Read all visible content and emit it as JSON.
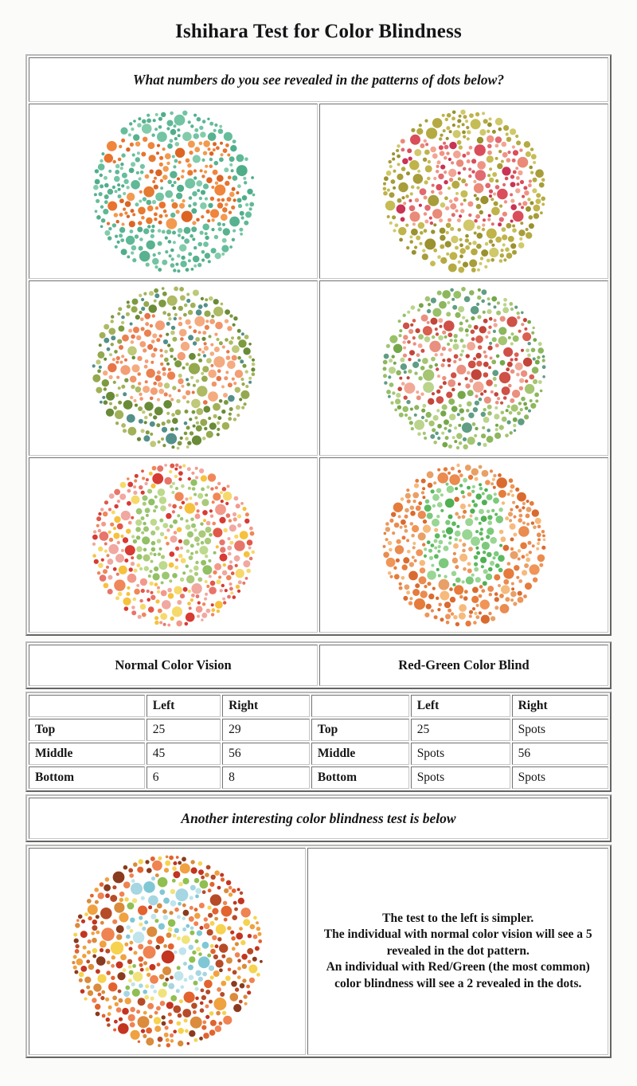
{
  "page": {
    "title": "Ishihara Test for Color Blindness",
    "question": "What numbers do you see revealed in the patterns of dots below?",
    "another_test": "Another interesting color blindness test is below"
  },
  "plates": {
    "grid": [
      {
        "position": "top-left",
        "number": "25",
        "background": [
          "#5fb896",
          "#72c4a3",
          "#4fae8a",
          "#83ccab",
          "#66bd9b",
          "#58b28f"
        ],
        "figure": [
          "#e9722e",
          "#f0853c",
          "#dc6524",
          "#f29a50",
          "#e57a31"
        ]
      },
      {
        "position": "top-right",
        "number": "29",
        "background": [
          "#b4aa41",
          "#c6bc55",
          "#9a912f",
          "#d0c86a",
          "#a79d3a",
          "#bfb34a"
        ],
        "figure": [
          "#ea8a78",
          "#e06a70",
          "#c93355",
          "#f2a593",
          "#d94e5a",
          "#ef9484"
        ]
      },
      {
        "position": "middle-left",
        "number": "45",
        "background": [
          "#94a84e",
          "#7c9a40",
          "#aeba64",
          "#698b38",
          "#bec979",
          "#53908a",
          "#a0b158"
        ],
        "figure": [
          "#f0956b",
          "#ec8150",
          "#f5ab80",
          "#e77447",
          "#f39e74"
        ]
      },
      {
        "position": "middle-right",
        "number": "56",
        "background": [
          "#a5c573",
          "#8db65e",
          "#75a74a",
          "#bad48c",
          "#609d84",
          "#98c068"
        ],
        "figure": [
          "#da604f",
          "#ea9080",
          "#c24539",
          "#f2a896",
          "#ce5046"
        ]
      },
      {
        "position": "bottom-left",
        "number": "6",
        "background": [
          "#e25848",
          "#f08758",
          "#f6c13d",
          "#f0a8a0",
          "#d73b33",
          "#f3998b",
          "#f6d96b",
          "#e8756a"
        ],
        "figure": [
          "#aaca7a",
          "#92c064",
          "#bdd98d",
          "#9cc671"
        ]
      },
      {
        "position": "bottom-right",
        "number": "8",
        "background": [
          "#f09557",
          "#e57c3b",
          "#da6b2f",
          "#f6ba7c",
          "#ea8b50",
          "#e8a067"
        ],
        "figure": [
          "#7cc97c",
          "#5cba5f",
          "#99d694",
          "#4eb053"
        ]
      }
    ],
    "bonus": {
      "position": "bonus",
      "number": "5",
      "background": [
        "#e3632f",
        "#f0a140",
        "#c33520",
        "#f6d24f",
        "#8a3b1e",
        "#da8b3b",
        "#b64b28",
        "#ef8352"
      ],
      "figure": [
        "#a5d6e1",
        "#80c7d5",
        "#c0e4eb",
        "#8fbf50",
        "#f1e37b"
      ]
    }
  },
  "results": {
    "normal": {
      "title": "Normal Color Vision",
      "columns": [
        "",
        "Left",
        "Right"
      ],
      "rows": [
        {
          "label": "Top",
          "left": "25",
          "right": "29"
        },
        {
          "label": "Middle",
          "left": "45",
          "right": "56"
        },
        {
          "label": "Bottom",
          "left": "6",
          "right": "8"
        }
      ]
    },
    "colorblind": {
      "title": "Red-Green Color Blind",
      "columns": [
        "",
        "Left",
        "Right"
      ],
      "rows": [
        {
          "label": "Top",
          "left": "25",
          "right": "Spots"
        },
        {
          "label": "Middle",
          "left": "Spots",
          "right": "56"
        },
        {
          "label": "Bottom",
          "left": "Spots",
          "right": "Spots"
        }
      ]
    }
  },
  "bonus_text": {
    "line1": "The test to the left is simpler.",
    "line2": "The individual with normal color vision will see a 5 revealed in the dot pattern.",
    "line3": "An individual with Red/Green (the most common) color blindness will see a 2 revealed in the dots."
  }
}
